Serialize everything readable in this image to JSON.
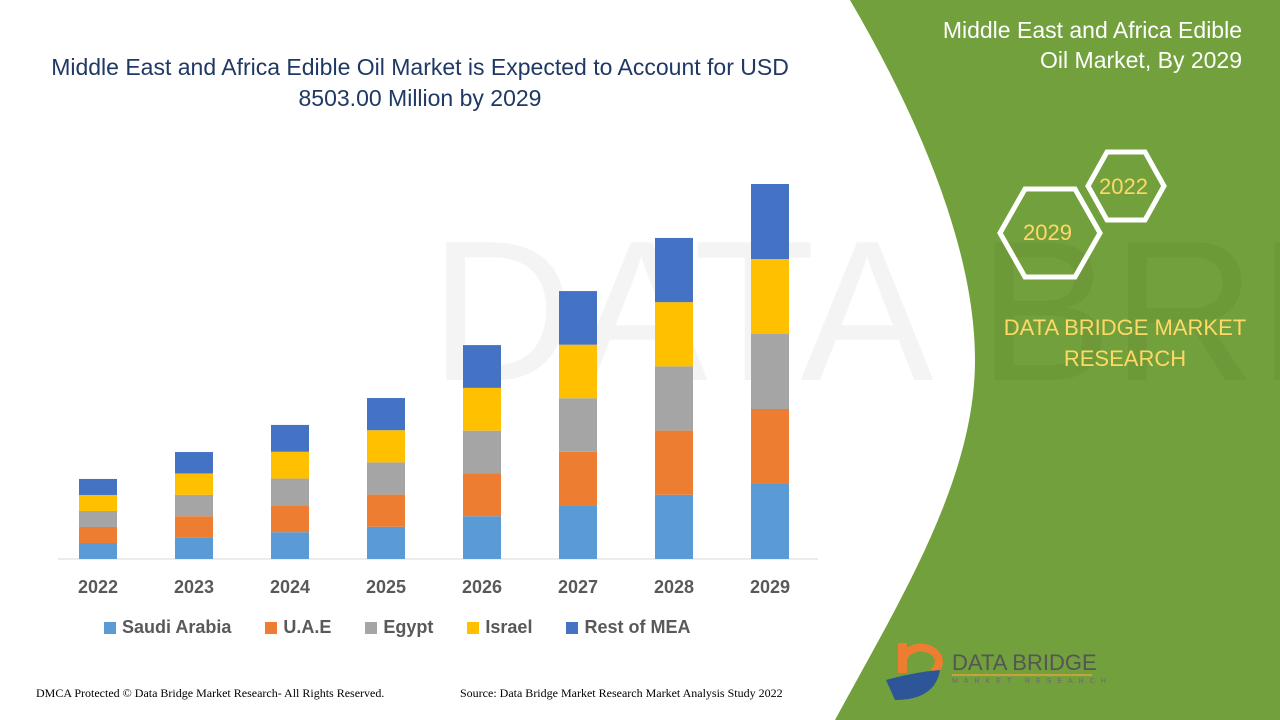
{
  "title": "Middle East and Africa Edible Oil Market is Expected to Account for USD 8503.00 Million by 2029",
  "side_panel": {
    "title": "Middle East and Africa Edible Oil Market, By 2029",
    "hex_left": "2029",
    "hex_right": "2022",
    "brand": "DATA BRIDGE MARKET RESEARCH",
    "logo_text": "DATA BRIDGE",
    "logo_sub": "MARKET RESEARCH",
    "color": "#72a03c"
  },
  "footer": {
    "left": "DMCA Protected © Data Bridge Market Research- All Rights Reserved.",
    "right": "Source: Data Bridge Market Research Market Analysis Study 2022"
  },
  "chart_data": {
    "type": "bar",
    "stacked": true,
    "categories": [
      "2022",
      "2023",
      "2024",
      "2025",
      "2026",
      "2027",
      "2028",
      "2029"
    ],
    "series": [
      {
        "name": "Saudi Arabia",
        "color": "#5b9bd5",
        "values": [
          363,
          485,
          608,
          730,
          970,
          1215,
          1456,
          1701
        ]
      },
      {
        "name": "U.A.E",
        "color": "#ed7d31",
        "values": [
          363,
          485,
          608,
          730,
          970,
          1215,
          1456,
          1700
        ]
      },
      {
        "name": "Egypt",
        "color": "#a5a5a5",
        "values": [
          363,
          485,
          608,
          730,
          970,
          1215,
          1456,
          1701
        ]
      },
      {
        "name": "Israel",
        "color": "#ffc000",
        "values": [
          363,
          485,
          608,
          730,
          970,
          1215,
          1456,
          1700
        ]
      },
      {
        "name": "Rest of MEA",
        "color": "#4472c4",
        "values": [
          363,
          485,
          608,
          730,
          970,
          1215,
          1456,
          1701
        ]
      }
    ],
    "unit": "USD Million",
    "ylim": [
      0,
      8503
    ],
    "grid": false,
    "legend": "bottom"
  }
}
